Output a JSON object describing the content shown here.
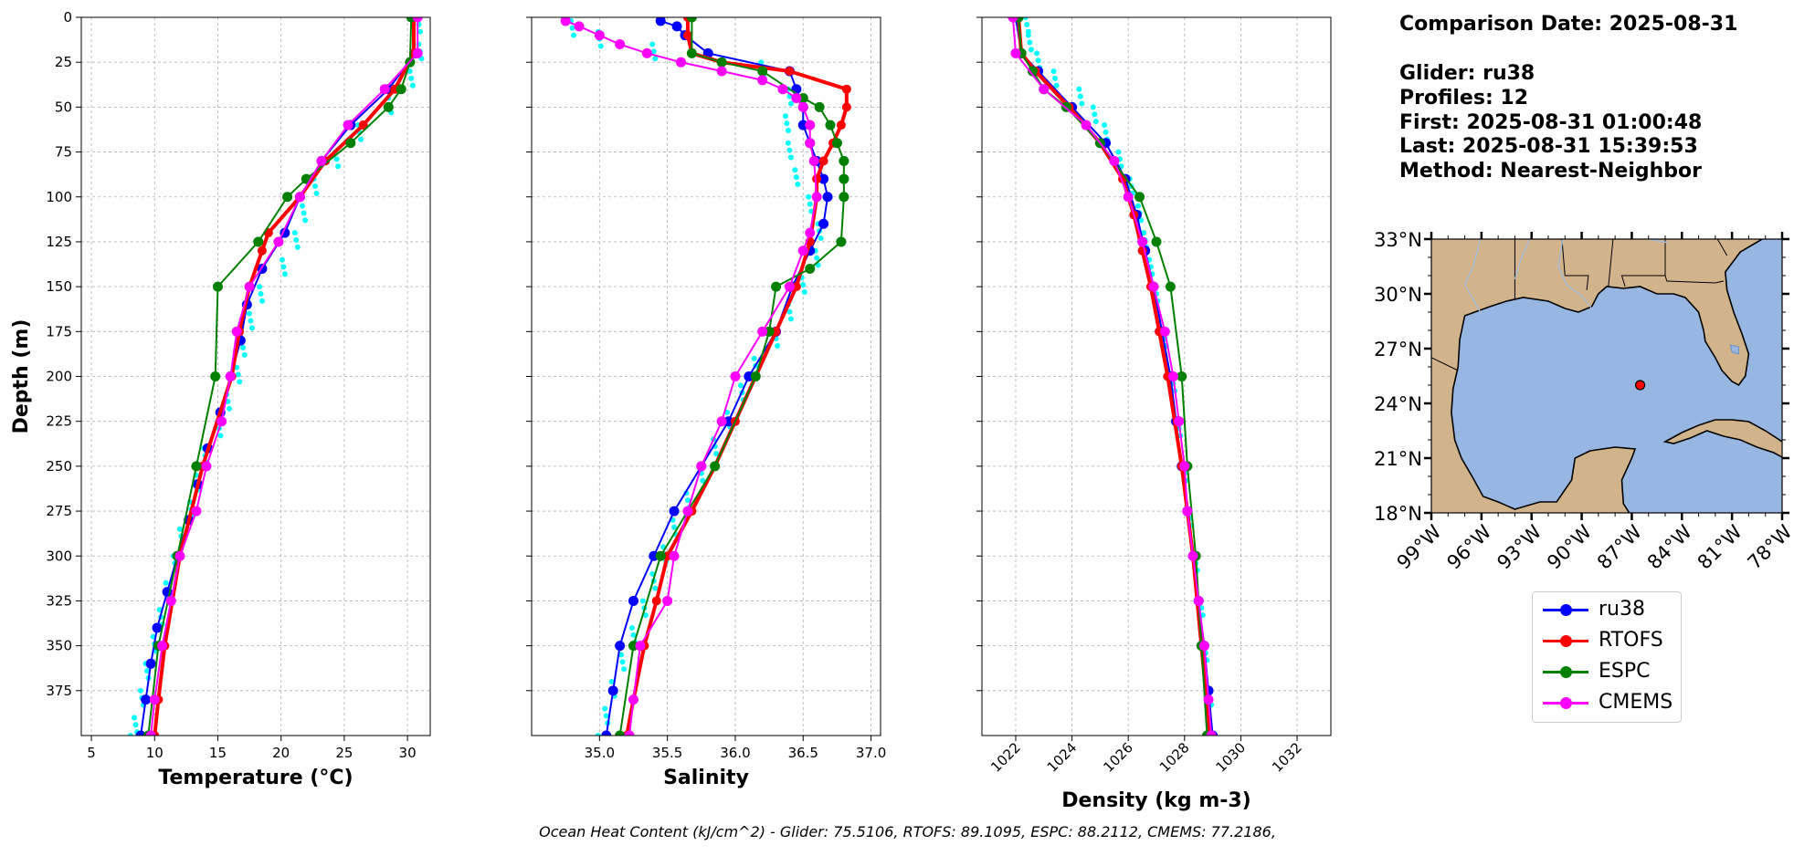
{
  "info": {
    "comparison_date": "Comparison Date: 2025-08-31",
    "glider": "Glider: ru38",
    "profiles": "Profiles: 12",
    "first": "First: 2025-08-31 01:00:48",
    "last": "Last: 2025-08-31 15:39:53",
    "method": "Method: Nearest-Neighbor"
  },
  "footer": "Ocean Heat Content (kJ/cm^2) - Glider: 75.5106,  RTOFS: 89.1095,  ESPC: 88.2112,  CMEMS: 77.2186,",
  "legend": [
    {
      "label": "ru38",
      "color": "#0000ff"
    },
    {
      "label": "RTOFS",
      "color": "#ff0000"
    },
    {
      "label": "ESPC",
      "color": "#008000"
    },
    {
      "label": "CMEMS",
      "color": "#ff00ff"
    }
  ],
  "colors": {
    "glider_raw": "#00ffff",
    "land": "#d2b48c",
    "ocean": "#98b6e2",
    "marker": "#ff0000"
  },
  "chart_data": [
    {
      "type": "line",
      "xlabel": "Temperature (°C)",
      "ylabel": "Depth (m)",
      "xlim": [
        4.2,
        31.8
      ],
      "ylim": [
        400,
        0
      ],
      "xticks": [
        5,
        10,
        15,
        20,
        25,
        30
      ],
      "yticks": [
        0,
        25,
        50,
        75,
        100,
        125,
        150,
        175,
        200,
        225,
        250,
        275,
        300,
        325,
        350,
        375
      ],
      "grid": true,
      "series": [
        {
          "name": "ru38",
          "depth": [
            0,
            20,
            40,
            60,
            80,
            100,
            120,
            140,
            160,
            180,
            200,
            220,
            240,
            260,
            280,
            300,
            320,
            340,
            360,
            380,
            400
          ],
          "values": [
            30.4,
            30.6,
            28.5,
            25.5,
            23.2,
            21.5,
            20.3,
            18.5,
            17.3,
            16.8,
            16.0,
            15.2,
            14.2,
            13.4,
            12.7,
            11.8,
            11.0,
            10.2,
            9.7,
            9.3,
            8.9
          ]
        },
        {
          "name": "RTOFS",
          "depth": [
            0,
            20,
            40,
            60,
            80,
            100,
            120,
            130,
            150,
            175,
            200,
            250,
            300,
            350,
            380,
            400
          ],
          "values": [
            30.5,
            30.5,
            29.0,
            26.5,
            23.5,
            21.5,
            19.0,
            18.5,
            17.5,
            16.7,
            16.1,
            13.8,
            12.0,
            10.8,
            10.3,
            10.0
          ]
        },
        {
          "name": "ESPC",
          "depth": [
            0,
            25,
            40,
            50,
            70,
            90,
            100,
            125,
            150,
            200,
            250,
            300,
            350,
            400
          ],
          "values": [
            30.3,
            30.2,
            29.5,
            28.5,
            25.5,
            22.0,
            20.5,
            18.2,
            15.0,
            14.8,
            13.3,
            11.8,
            10.3,
            9.5
          ]
        },
        {
          "name": "CMEMS",
          "depth": [
            0,
            20,
            40,
            60,
            80,
            100,
            125,
            150,
            175,
            200,
            225,
            250,
            275,
            300,
            325,
            350,
            380,
            400
          ],
          "values": [
            30.8,
            30.8,
            28.2,
            25.3,
            23.2,
            21.5,
            19.8,
            17.5,
            16.5,
            16.0,
            15.3,
            14.1,
            13.3,
            12.0,
            11.3,
            10.6,
            10.0,
            9.7
          ]
        }
      ],
      "raw": {
        "name": "glider profiles",
        "depth": [
          0,
          15,
          30,
          45,
          60,
          75,
          90,
          105,
          120,
          135,
          150,
          165,
          180,
          195,
          210,
          225,
          240,
          255,
          270,
          285,
          300,
          315,
          330,
          345,
          360,
          375,
          390,
          400
        ],
        "values": [
          30.9,
          31.0,
          30.3,
          28.6,
          26.2,
          24.4,
          22.7,
          21.8,
          21.2,
          20.2,
          18.4,
          17.6,
          17.0,
          16.6,
          15.8,
          15.1,
          14.0,
          13.4,
          12.9,
          12.1,
          11.6,
          11.0,
          10.5,
          10.0,
          9.4,
          9.0,
          8.5,
          8.2
        ]
      }
    },
    {
      "type": "line",
      "xlabel": "Salinity",
      "ylabel": "",
      "xlim": [
        34.5,
        37.07
      ],
      "ylim": [
        400,
        0
      ],
      "xticks": [
        35.0,
        35.5,
        36.0,
        36.5,
        37.0
      ],
      "yticks": [
        0,
        25,
        50,
        75,
        100,
        125,
        150,
        175,
        200,
        225,
        250,
        275,
        300,
        325,
        350,
        375
      ],
      "grid": true,
      "series": [
        {
          "name": "ru38",
          "depth": [
            2,
            5,
            10,
            20,
            30,
            40,
            50,
            60,
            70,
            80,
            90,
            100,
            115,
            130,
            150,
            175,
            200,
            225,
            250,
            275,
            300,
            325,
            350,
            375,
            400
          ],
          "values": [
            35.45,
            35.57,
            35.63,
            35.8,
            36.4,
            36.45,
            36.5,
            36.5,
            36.55,
            36.6,
            36.65,
            36.68,
            36.65,
            36.55,
            36.42,
            36.3,
            36.1,
            35.95,
            35.75,
            35.55,
            35.4,
            35.25,
            35.15,
            35.1,
            35.05
          ]
        },
        {
          "name": "RTOFS",
          "depth": [
            0,
            10,
            20,
            25,
            30,
            40,
            50,
            60,
            70,
            80,
            90,
            100,
            125,
            150,
            175,
            200,
            225,
            250,
            275,
            300,
            325,
            350,
            380,
            400
          ],
          "values": [
            35.65,
            35.65,
            35.68,
            35.9,
            36.4,
            36.82,
            36.82,
            36.78,
            36.72,
            36.65,
            36.6,
            36.6,
            36.55,
            36.45,
            36.3,
            36.15,
            36.0,
            35.85,
            35.68,
            35.5,
            35.42,
            35.33,
            35.25,
            35.2
          ]
        },
        {
          "name": "ESPC",
          "depth": [
            0,
            20,
            25,
            30,
            45,
            50,
            60,
            70,
            80,
            90,
            100,
            125,
            140,
            150,
            175,
            200,
            250,
            300,
            350,
            400
          ],
          "values": [
            35.68,
            35.68,
            35.9,
            36.2,
            36.5,
            36.62,
            36.7,
            36.75,
            36.8,
            36.8,
            36.8,
            36.78,
            36.55,
            36.3,
            36.25,
            36.15,
            35.85,
            35.45,
            35.25,
            35.15
          ]
        },
        {
          "name": "CMEMS",
          "depth": [
            2,
            5,
            10,
            15,
            20,
            25,
            30,
            35,
            40,
            45,
            50,
            60,
            70,
            80,
            100,
            120,
            130,
            150,
            175,
            200,
            225,
            250,
            275,
            300,
            325,
            350,
            380,
            400
          ],
          "values": [
            34.75,
            34.85,
            35.0,
            35.15,
            35.35,
            35.6,
            35.9,
            36.2,
            36.35,
            36.45,
            36.5,
            36.55,
            36.55,
            36.58,
            36.6,
            36.55,
            36.5,
            36.4,
            36.2,
            36.0,
            35.9,
            35.75,
            35.65,
            35.55,
            35.5,
            35.3,
            35.25,
            35.22
          ]
        }
      ],
      "raw": {
        "name": "glider profiles",
        "depth": [
          2,
          8,
          15,
          25,
          40,
          55,
          70,
          85,
          100,
          115,
          130,
          145,
          160,
          175,
          190,
          205,
          220,
          235,
          250,
          265,
          280,
          295,
          310,
          325,
          340,
          355,
          370,
          385,
          400
        ],
        "values": [
          34.8,
          35.0,
          35.4,
          36.2,
          36.4,
          36.38,
          36.4,
          36.45,
          36.55,
          36.62,
          36.6,
          36.5,
          36.4,
          36.3,
          36.15,
          36.05,
          35.95,
          35.85,
          35.75,
          35.65,
          35.55,
          35.48,
          35.4,
          35.33,
          35.25,
          35.17,
          35.1,
          35.05,
          35.0
        ]
      }
    },
    {
      "type": "line",
      "xlabel": "Density (kg m-3)",
      "ylabel": "",
      "xlim": [
        1020.8,
        1033.2
      ],
      "ylim": [
        400,
        0
      ],
      "xticks": [
        1022,
        1024,
        1026,
        1028,
        1030,
        1032
      ],
      "yticks": [
        0,
        25,
        50,
        75,
        100,
        125,
        150,
        175,
        200,
        225,
        250,
        275,
        300,
        325,
        350,
        375
      ],
      "grid": true,
      "series": [
        {
          "name": "ru38",
          "depth": [
            0,
            20,
            30,
            50,
            70,
            90,
            110,
            130,
            150,
            175,
            200,
            225,
            250,
            275,
            300,
            325,
            350,
            375,
            400
          ],
          "values": [
            1022.0,
            1022.2,
            1022.8,
            1024.0,
            1025.2,
            1025.9,
            1026.3,
            1026.6,
            1026.9,
            1027.2,
            1027.5,
            1027.7,
            1027.9,
            1028.1,
            1028.3,
            1028.5,
            1028.7,
            1028.85,
            1029.0
          ]
        },
        {
          "name": "RTOFS",
          "depth": [
            0,
            20,
            30,
            50,
            70,
            90,
            110,
            130,
            150,
            175,
            200,
            250,
            300,
            350,
            400
          ],
          "values": [
            1022.1,
            1022.2,
            1022.7,
            1023.9,
            1025.0,
            1025.8,
            1026.2,
            1026.5,
            1026.8,
            1027.1,
            1027.4,
            1027.9,
            1028.3,
            1028.6,
            1028.9
          ]
        },
        {
          "name": "ESPC",
          "depth": [
            0,
            20,
            30,
            40,
            50,
            70,
            100,
            125,
            150,
            200,
            250,
            300,
            350,
            400
          ],
          "values": [
            1022.1,
            1022.2,
            1022.6,
            1023.0,
            1023.8,
            1025.0,
            1026.4,
            1027.0,
            1027.5,
            1027.9,
            1028.1,
            1028.4,
            1028.6,
            1028.8
          ]
        },
        {
          "name": "CMEMS",
          "depth": [
            0,
            20,
            40,
            60,
            80,
            100,
            125,
            150,
            175,
            200,
            225,
            250,
            275,
            300,
            325,
            350,
            380,
            400
          ],
          "values": [
            1021.9,
            1022.0,
            1023.0,
            1024.5,
            1025.5,
            1026.0,
            1026.5,
            1026.9,
            1027.3,
            1027.6,
            1027.8,
            1028.0,
            1028.1,
            1028.3,
            1028.5,
            1028.7,
            1028.85,
            1028.95
          ]
        }
      ],
      "raw": {
        "name": "glider profiles",
        "depth": [
          0,
          10,
          20,
          30,
          40,
          50,
          60,
          75,
          90,
          105,
          120,
          135,
          150,
          175,
          200,
          225,
          250,
          275,
          300,
          325,
          350,
          375,
          400
        ],
        "values": [
          1022.4,
          1022.5,
          1022.8,
          1023.4,
          1024.3,
          1024.8,
          1025.2,
          1025.7,
          1026.1,
          1026.4,
          1026.6,
          1026.8,
          1027.0,
          1027.3,
          1027.6,
          1027.8,
          1028.0,
          1028.2,
          1028.4,
          1028.6,
          1028.75,
          1028.9,
          1029.05
        ]
      }
    },
    {
      "type": "map",
      "lon_range": [
        -99,
        -78
      ],
      "lat_range": [
        18,
        33
      ],
      "xticks": [
        "99°W",
        "96°W",
        "93°W",
        "90°W",
        "87°W",
        "84°W",
        "81°W",
        "78°W"
      ],
      "yticks": [
        "18°N",
        "21°N",
        "24°N",
        "27°N",
        "30°N",
        "33°N"
      ],
      "marker": {
        "lon": -86.5,
        "lat": 25.0
      }
    }
  ]
}
